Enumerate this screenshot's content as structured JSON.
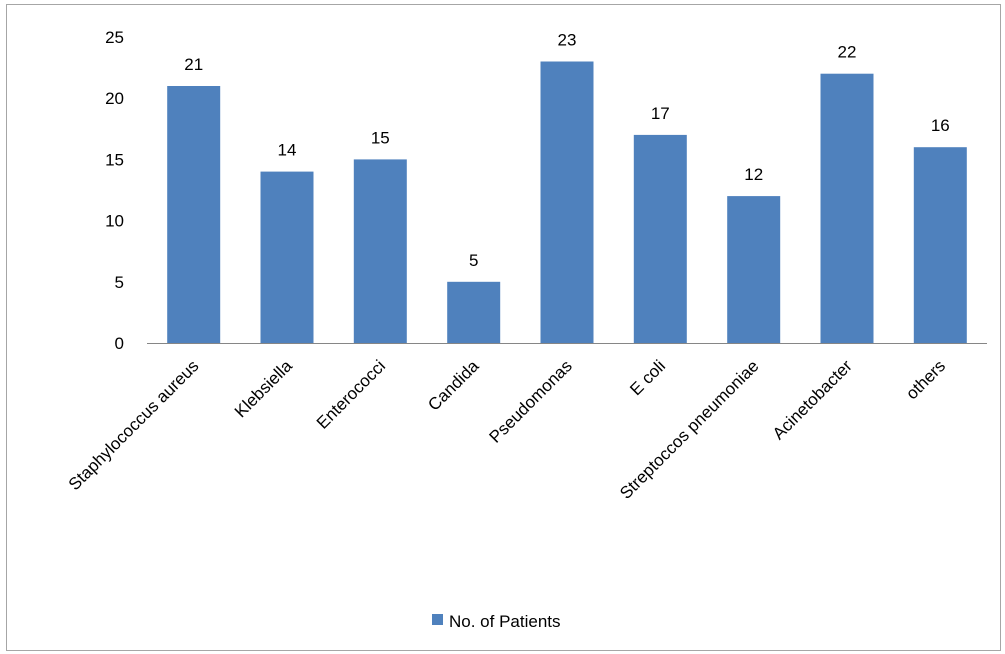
{
  "chart_data": {
    "type": "bar",
    "categories": [
      "Staphylococcus aureus",
      "Klebsiella",
      "Enterococci",
      "Candida",
      "Pseudomonas",
      "E coli",
      "Streptoccos pneumoniae",
      "Acinetobacter",
      "others"
    ],
    "series": [
      {
        "name": "No. of Patients",
        "values": [
          21,
          14,
          15,
          5,
          23,
          17,
          12,
          22,
          16
        ],
        "color": "#4f81bd"
      }
    ],
    "yticks": [
      0,
      5,
      10,
      15,
      20,
      25
    ],
    "ylim": [
      0,
      25
    ],
    "title": "",
    "xlabel": "",
    "ylabel": "",
    "grid": false,
    "legend_position": "bottom",
    "data_labels": true
  }
}
